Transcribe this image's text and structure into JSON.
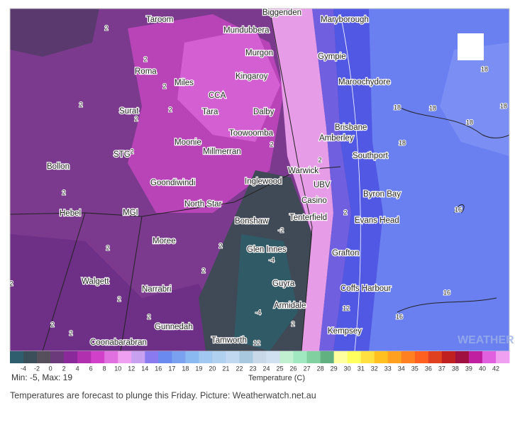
{
  "map": {
    "places": [
      "Biggenden",
      "Maryborough",
      "Taroom",
      "Mundubbera",
      "Murgon",
      "Gympie",
      "Roma",
      "Kingaroy",
      "Maroochydore",
      "Miles",
      "CCA",
      "Surat",
      "Tara",
      "Dalby",
      "Brisbane",
      "Toowoomba",
      "Amberley",
      "Southport",
      "STG",
      "Millmerran",
      "Moonie",
      "Bollon",
      "Warwick",
      "Goondiwindi",
      "Inglewood",
      "UBV",
      "Byron Bay",
      "North Star",
      "Casino",
      "Hebel",
      "MGI",
      "Bonshaw",
      "Tenterfield",
      "Evans Head",
      "Moree",
      "Glen Innes",
      "Grafton",
      "Walgett",
      "Guyra",
      "Narrabri",
      "Coffs Harbour",
      "Armidale",
      "Gunnedah",
      "Kempsey",
      "Coonabarabran",
      "Tamworth"
    ],
    "contour_labels": [
      18,
      18,
      18,
      18,
      18,
      18,
      16,
      16,
      16,
      12,
      12,
      -2,
      -4,
      -4,
      2,
      2,
      2,
      2,
      2,
      2,
      2,
      2,
      2,
      2,
      2,
      2,
      2,
      2,
      2,
      2,
      2,
      2,
      2,
      2
    ],
    "watermark": "WEATHER"
  },
  "scale": {
    "ticks": [
      -4,
      -2,
      0,
      2,
      4,
      6,
      8,
      10,
      12,
      14,
      16,
      17,
      18,
      19,
      20,
      21,
      22,
      23,
      24,
      25,
      26,
      27,
      28,
      29,
      30,
      31,
      32,
      33,
      34,
      35,
      36,
      37,
      38,
      39,
      40,
      42
    ],
    "colors": [
      "#2f5f6e",
      "#3b4f5b",
      "#55505c",
      "#6a3a7a",
      "#8a2a9a",
      "#b030b0",
      "#d040c8",
      "#e070e0",
      "#f0a0f0",
      "#c8a0f0",
      "#8a7af0",
      "#6a8af0",
      "#7aa0f0",
      "#8ab8f0",
      "#a0c8f0",
      "#b0d0f0",
      "#c0d8f0",
      "#a8c8e0",
      "#c8d8e8",
      "#d0e0f0",
      "#c0f0d0",
      "#a0e8c0",
      "#80d0a0",
      "#60b080",
      "#ffffa0",
      "#ffff60",
      "#ffe040",
      "#ffc020",
      "#ffa020",
      "#ff8020",
      "#ff6020",
      "#e04020",
      "#c02020",
      "#a01040",
      "#c020a0",
      "#e060e0",
      "#f0a0f0"
    ],
    "minmax": "Min: -5, Max: 19",
    "unit_label": "Temperature (C)"
  },
  "caption": "Temperatures are forecast to plunge this Friday. Picture: Weatherwatch.net.au"
}
